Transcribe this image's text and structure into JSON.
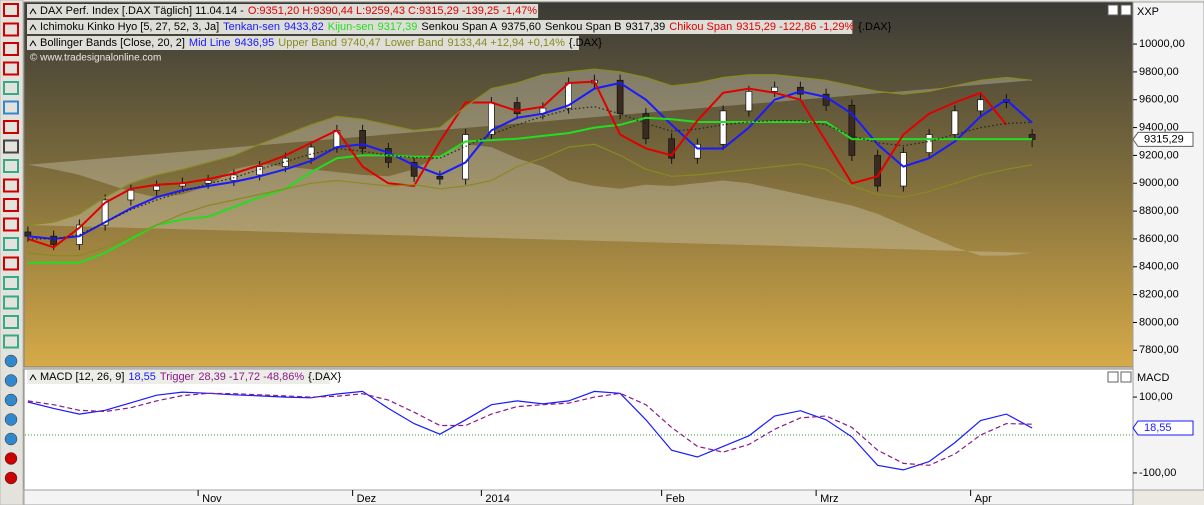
{
  "watermark": "© www.tradesignalonline.com",
  "chart_data": [
    {
      "type": "candlestick",
      "header": {
        "text": "DAX Perf. Index [.DAX  Täglich] 11.04.14 -",
        "quote": "O:9351,20 H:9390,44 L:9259,43 C:9315,29 -139,25 -1,47%"
      },
      "axis_label": "XXP",
      "last_label": "9315,29",
      "open": [
        8650,
        8620,
        8560,
        8700,
        8880,
        8950,
        8980,
        9000,
        9020,
        9060,
        9120,
        9180,
        9260,
        9380,
        9250,
        9150,
        9050,
        9030,
        9350,
        9580,
        9500,
        9540,
        9720,
        9740,
        9500,
        9320,
        9180,
        9280,
        9520,
        9660,
        9690,
        9640,
        9560,
        9200,
        8980,
        9220,
        9350,
        9520,
        9600,
        9351
      ],
      "high": [
        8690,
        8660,
        8740,
        8920,
        8990,
        9020,
        9040,
        9060,
        9100,
        9160,
        9220,
        9300,
        9420,
        9420,
        9290,
        9190,
        9090,
        9390,
        9620,
        9620,
        9580,
        9760,
        9780,
        9780,
        9540,
        9360,
        9320,
        9560,
        9700,
        9730,
        9730,
        9680,
        9600,
        9240,
        9260,
        9390,
        9560,
        9640,
        9640,
        9390
      ],
      "low": [
        8580,
        8520,
        8520,
        8660,
        8840,
        8910,
        8940,
        8960,
        8980,
        9020,
        9080,
        9140,
        9220,
        9210,
        9110,
        9010,
        8990,
        8990,
        9310,
        9460,
        9460,
        9500,
        9680,
        9460,
        9280,
        9140,
        9140,
        9240,
        9480,
        9620,
        9600,
        9520,
        9160,
        8940,
        8940,
        9180,
        9310,
        9480,
        9540,
        9259
      ],
      "close": [
        8620,
        8560,
        8700,
        8880,
        8950,
        8980,
        9000,
        9020,
        9060,
        9120,
        9180,
        9260,
        9380,
        9250,
        9150,
        9050,
        9030,
        9350,
        9580,
        9500,
        9540,
        9720,
        9740,
        9500,
        9320,
        9180,
        9280,
        9520,
        9660,
        9690,
        9640,
        9560,
        9200,
        8980,
        9220,
        9350,
        9520,
        9600,
        9580,
        9315
      ],
      "up_color": "#ffffff",
      "down_color": "#3a2a20",
      "band_fill_color": "#d8d4c4",
      "indicators": [
        {
          "label": "Ichimoku Kinko Hyo [5, 27, 52, 3, Ja]",
          "source": "{.DAX}",
          "items": [
            {
              "name": "Tenkan-sen",
              "reading": "9433,82",
              "color": "#1a1aff",
              "style": "solid",
              "values": [
                8620,
                8600,
                8620,
                8720,
                8820,
                8900,
                8950,
                8980,
                9010,
                9050,
                9100,
                9160,
                9260,
                9280,
                9220,
                9130,
                9060,
                9150,
                9380,
                9470,
                9500,
                9560,
                9680,
                9720,
                9600,
                9420,
                9250,
                9250,
                9400,
                9600,
                9660,
                9620,
                9500,
                9280,
                9120,
                9180,
                9300,
                9480,
                9600,
                9434
              ]
            },
            {
              "name": "Kijun-sen",
              "reading": "9317,39",
              "color": "#22dd22",
              "style": "solid",
              "values": [
                8430,
                8430,
                8430,
                8500,
                8600,
                8700,
                8740,
                8760,
                8830,
                8900,
                8960,
                9080,
                9180,
                9200,
                9200,
                9190,
                9190,
                9300,
                9310,
                9320,
                9340,
                9360,
                9400,
                9420,
                9470,
                9460,
                9440,
                9440,
                9440,
                9440,
                9440,
                9440,
                9317,
                9317,
                9317,
                9317,
                9317,
                9317,
                9317,
                9317
              ]
            },
            {
              "name": "Senkou Span A",
              "reading": "9375,60",
              "color": "#000000"
            },
            {
              "name": "Senkou Span B",
              "reading": "9317,39",
              "color": "#000000"
            },
            {
              "name": "Chikou Span",
              "reading": "9315,29 -122,86 -1,29%",
              "color": "#e00000",
              "style": "solid",
              "values": [
                8600,
                8540,
                8680,
                8860,
                8960,
                8990,
                9000,
                9030,
                9070,
                9130,
                9200,
                9290,
                9380,
                9120,
                9000,
                8980,
                9300,
                9580,
                9580,
                9520,
                9550,
                9720,
                9730,
                9350,
                9250,
                9200,
                9450,
                9650,
                9680,
                9650,
                9600,
                9300,
                9000,
                9050,
                9350,
                9500,
                9580,
                9650,
                9420,
                null
              ]
            }
          ]
        },
        {
          "label": "Bollinger Bands [Close, 20, 2]",
          "source": "{.DAX}",
          "items": [
            {
              "name": "Mid Line",
              "reading": "9436,95",
              "color": "#1a1aff",
              "style": "dotted",
              "values": [
                8600,
                8600,
                8630,
                8720,
                8810,
                8880,
                8940,
                8995,
                9040,
                9100,
                9155,
                9210,
                9250,
                9230,
                9200,
                9185,
                9180,
                9265,
                9350,
                9420,
                9480,
                9530,
                9550,
                9500,
                9430,
                9375,
                9390,
                9420,
                9440,
                9450,
                9450,
                9420,
                9340,
                9290,
                9270,
                9300,
                9350,
                9400,
                9430,
                9437
              ]
            },
            {
              "name": "Upper Band",
              "reading": "9740,47",
              "color": "#8a8a20",
              "style": "band",
              "values": [
                8700,
                8720,
                8780,
                8900,
                9000,
                9060,
                9100,
                9150,
                9200,
                9280,
                9350,
                9420,
                9480,
                9460,
                9420,
                9380,
                9400,
                9550,
                9680,
                9720,
                9780,
                9800,
                9820,
                9800,
                9760,
                9700,
                9720,
                9760,
                9780,
                9780,
                9760,
                9740,
                9700,
                9660,
                9640,
                9660,
                9700,
                9740,
                9760,
                9740
              ]
            },
            {
              "name": "Lower Band",
              "reading": "9133,44 +12,94 +0,14%",
              "color": "#8a8a20",
              "style": "band",
              "values": [
                8500,
                8480,
                8480,
                8540,
                8620,
                8700,
                8780,
                8840,
                8880,
                8920,
                8960,
                9000,
                9020,
                9000,
                8980,
                8990,
                8960,
                8980,
                9020,
                9120,
                9180,
                9260,
                9280,
                9200,
                9100,
                9050,
                9060,
                9080,
                9100,
                9120,
                9140,
                9100,
                8980,
                8920,
                8900,
                8940,
                9000,
                9060,
                9100,
                9133
              ]
            }
          ]
        }
      ],
      "ylim": [
        7680,
        10295
      ],
      "yticks": [
        {
          "value": 7800,
          "label": "7800,00"
        },
        {
          "value": 8000,
          "label": "8000,00"
        },
        {
          "value": 8200,
          "label": "8200,00"
        },
        {
          "value": 8400,
          "label": "8400,00"
        },
        {
          "value": 8600,
          "label": "8600,00"
        },
        {
          "value": 8800,
          "label": "8800,00"
        },
        {
          "value": 9000,
          "label": "9000,00"
        },
        {
          "value": 9200,
          "label": "9200,00"
        },
        {
          "value": 9400,
          "label": "9400,00"
        },
        {
          "value": 9600,
          "label": "9600,00"
        },
        {
          "value": 9800,
          "label": "9800,00"
        },
        {
          "value": 10000,
          "label": "10000,00"
        }
      ]
    },
    {
      "type": "line",
      "axis_label": "MACD",
      "last_label": "18,55",
      "indicators": [
        {
          "label": "MACD [12, 26, 9]",
          "source": "{.DAX}",
          "items": [
            {
              "reading": "18,55",
              "color": "#1a1aff",
              "style": "solid",
              "values": [
                87,
                70,
                55,
                65,
                85,
                105,
                113,
                110,
                106,
                103,
                100,
                98,
                108,
                115,
                70,
                30,
                2,
                40,
                80,
                90,
                82,
                90,
                115,
                110,
                40,
                -40,
                -58,
                -30,
                -2,
                50,
                64,
                40,
                -5,
                -80,
                -92,
                -70,
                -20,
                38,
                55,
                18.55
              ]
            },
            {
              "name": "Trigger",
              "reading": "28,39 -17,72 -48,86%",
              "color": "#8a1a8a",
              "style": "dashed",
              "values": [
                90,
                80,
                65,
                62,
                72,
                90,
                104,
                110,
                109,
                106,
                103,
                100,
                102,
                109,
                92,
                60,
                25,
                25,
                55,
                75,
                80,
                84,
                100,
                110,
                80,
                20,
                -30,
                -45,
                -25,
                15,
                45,
                50,
                20,
                -40,
                -75,
                -80,
                -50,
                0,
                30,
                28.39
              ]
            }
          ]
        }
      ],
      "categories": [
        null,
        null,
        null,
        null,
        null,
        null,
        null,
        "Nov",
        null,
        null,
        null,
        null,
        null,
        "Dez",
        null,
        null,
        null,
        null,
        "2014",
        null,
        null,
        null,
        null,
        null,
        null,
        "Feb",
        null,
        null,
        null,
        null,
        null,
        "Mrz",
        null,
        null,
        null,
        null,
        null,
        "Apr",
        null,
        null
      ],
      "hlines": [
        0
      ],
      "ylim": [
        -145,
        174
      ],
      "yticks": [
        {
          "value": -100,
          "label": "-100,00"
        },
        {
          "value": 100,
          "label": "100,00"
        }
      ]
    }
  ]
}
